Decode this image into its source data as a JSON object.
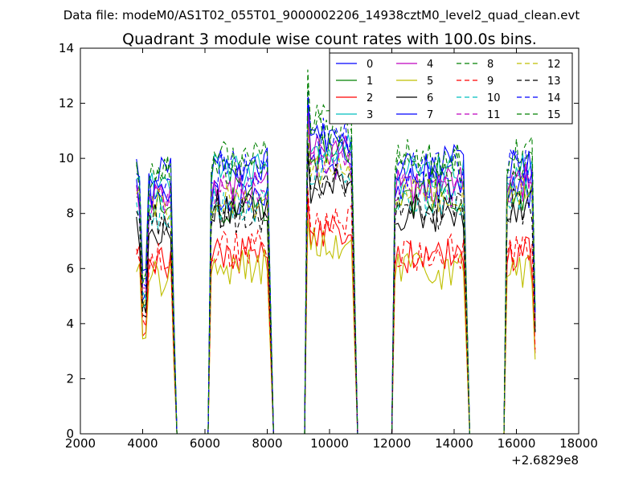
{
  "chart_data": {
    "type": "line",
    "suptitle": "Data file: modeM0/AS1T02_055T01_9000002206_14938cztM0_level2_quad_clean.evt",
    "title": "Quadrant 3 module wise count rates with 100.0s bins.",
    "xlabel": "",
    "ylabel": "",
    "x_offset_label": "+2.6829e8",
    "xlim": [
      2000,
      18000
    ],
    "ylim": [
      0,
      14
    ],
    "xticks": [
      "2000",
      "4000",
      "6000",
      "8000",
      "10000",
      "12000",
      "14000",
      "16000",
      "18000"
    ],
    "yticks": [
      "0",
      "2",
      "4",
      "6",
      "8",
      "10",
      "12",
      "14"
    ],
    "grid": false,
    "legend_position": "top-right",
    "legend_columns": 4,
    "segments": [
      {
        "x": [
          3800,
          3900,
          4000,
          4100,
          4200,
          4300,
          4400,
          4500,
          4600,
          4700,
          4800,
          4900,
          5000
        ]
      },
      {
        "x": [
          6200,
          6300,
          6400,
          6500,
          6600,
          6700,
          6800,
          6900,
          7000,
          7100,
          7200,
          7300,
          7400,
          7500,
          7600,
          7700,
          7800,
          7900,
          8000,
          8100
        ]
      },
      {
        "x": [
          9300,
          9400,
          9500,
          9600,
          9700,
          9800,
          9900,
          10000,
          10100,
          10200,
          10300,
          10400,
          10500,
          10600,
          10700,
          10800
        ]
      },
      {
        "x": [
          12100,
          12200,
          12300,
          12400,
          12500,
          12600,
          12700,
          12800,
          12900,
          13000,
          13100,
          13200,
          13300,
          13400,
          13500,
          13600,
          13700,
          13800,
          13900,
          14000,
          14100,
          14200,
          14300,
          14400
        ]
      },
      {
        "x": [
          15700,
          15800,
          15900,
          16000,
          16100,
          16200,
          16300,
          16400,
          16500,
          16600
        ]
      }
    ],
    "gaps": [
      {
        "x": [
          5000,
          5100,
          6100,
          6200
        ]
      },
      {
        "x": [
          8100,
          8200,
          9200,
          9300
        ]
      },
      {
        "x": [
          10800,
          10900,
          12000,
          12100
        ]
      },
      {
        "x": [
          14400,
          14500,
          15600,
          15700
        ]
      }
    ],
    "series": [
      {
        "name": "0",
        "color": "#0000ff",
        "dash": "solid",
        "level": [
          9.5,
          8.5,
          10.0,
          9.0,
          8.8
        ]
      },
      {
        "name": "1",
        "color": "#008000",
        "dash": "solid",
        "level": [
          8.2,
          8.3,
          10.2,
          8.5,
          8.6
        ]
      },
      {
        "name": "2",
        "color": "#ff0000",
        "dash": "solid",
        "level": [
          6.2,
          6.5,
          7.5,
          6.4,
          6.5
        ]
      },
      {
        "name": "3",
        "color": "#00bfbf",
        "dash": "solid",
        "level": [
          8.8,
          9.5,
          10.5,
          9.5,
          9.6
        ]
      },
      {
        "name": "4",
        "color": "#bf00bf",
        "dash": "solid",
        "level": [
          8.6,
          9.0,
          10.3,
          9.0,
          9.2
        ]
      },
      {
        "name": "5",
        "color": "#bfbf00",
        "dash": "solid",
        "level": [
          5.6,
          6.1,
          6.8,
          5.9,
          6.0
        ]
      },
      {
        "name": "6",
        "color": "#000000",
        "dash": "solid",
        "level": [
          7.5,
          8.2,
          9.0,
          8.0,
          8.2
        ]
      },
      {
        "name": "7",
        "color": "#0000ff",
        "dash": "solid",
        "level": [
          8.8,
          9.8,
          10.6,
          9.8,
          9.8
        ]
      },
      {
        "name": "8",
        "color": "#008000",
        "dash": "dashed",
        "level": [
          9.3,
          10.0,
          11.0,
          10.0,
          10.1
        ]
      },
      {
        "name": "9",
        "color": "#ff0000",
        "dash": "dashed",
        "level": [
          6.4,
          6.7,
          7.8,
          6.6,
          6.8
        ]
      },
      {
        "name": "10",
        "color": "#00bfbf",
        "dash": "dashed",
        "level": [
          8.0,
          8.3,
          9.6,
          8.6,
          8.8
        ]
      },
      {
        "name": "11",
        "color": "#bf00bf",
        "dash": "dashed",
        "level": [
          8.4,
          8.7,
          9.8,
          8.9,
          9.0
        ]
      },
      {
        "name": "12",
        "color": "#bfbf00",
        "dash": "dashed",
        "level": [
          8.3,
          8.5,
          9.7,
          8.7,
          8.8
        ]
      },
      {
        "name": "13",
        "color": "#000000",
        "dash": "dashed",
        "level": [
          7.7,
          7.9,
          9.2,
          8.1,
          8.2
        ]
      },
      {
        "name": "14",
        "color": "#0000ff",
        "dash": "dashed",
        "level": [
          9.0,
          9.6,
          10.8,
          9.6,
          9.7
        ]
      },
      {
        "name": "15",
        "color": "#008000",
        "dash": "dashed",
        "level": [
          9.4,
          9.7,
          11.5,
          9.7,
          9.9
        ]
      }
    ]
  }
}
